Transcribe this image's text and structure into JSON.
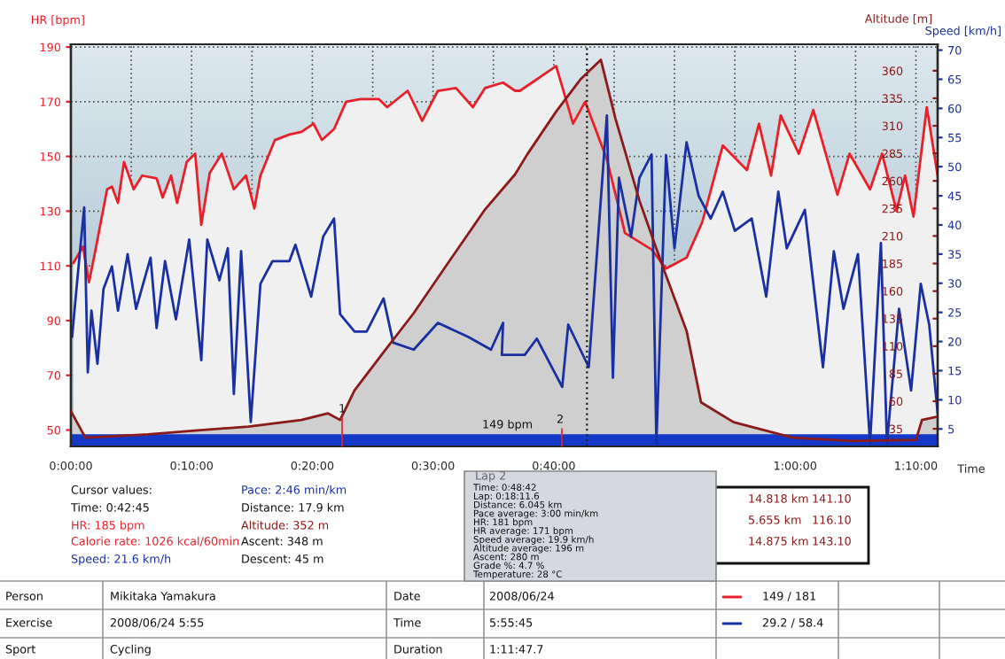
{
  "chart_data": {
    "type": "area",
    "xlabel": "Time",
    "ylabel": "HR [bpm]",
    "y2label": "Speed [km/h]",
    "y3label": "Altitude [m]",
    "xlim": [
      0,
      71.8
    ],
    "xticks": [
      {
        "value": 0,
        "label": "0:00:00"
      },
      {
        "value": 5,
        "label": null
      },
      {
        "value": 10,
        "label": "0:10:00"
      },
      {
        "value": 15,
        "label": null
      },
      {
        "value": 20,
        "label": "0:20:00"
      },
      {
        "value": 25,
        "label": null
      },
      {
        "value": 30,
        "label": "0:30:00"
      },
      {
        "value": 35,
        "label": null
      },
      {
        "value": 40,
        "label": "0:40:00"
      },
      {
        "value": 45,
        "label": null
      },
      {
        "value": 50,
        "label": null
      },
      {
        "value": 55,
        "label": null
      },
      {
        "value": 60,
        "label": "1:00:00"
      },
      {
        "value": 65,
        "label": null
      },
      {
        "value": 70,
        "label": "1:10:00"
      }
    ],
    "ylim": [
      44,
      191
    ],
    "yticks": [
      50,
      70,
      90,
      110,
      130,
      150,
      170,
      190
    ],
    "y2lim": [
      2,
      71
    ],
    "y2ticks": [
      5,
      10,
      15,
      20,
      25,
      30,
      35,
      40,
      45,
      50,
      55,
      60,
      65,
      70
    ],
    "y3lim": [
      19,
      384
    ],
    "y3ticks": [
      35,
      60,
      85,
      110,
      135,
      160,
      185,
      210,
      235,
      260,
      285,
      310,
      335,
      360
    ],
    "grid": true,
    "series": [
      {
        "color": "#e8202a",
        "x": [
          0.2,
          1.0,
          1.5,
          2.0,
          3.0,
          3.4,
          3.9,
          4.4,
          5.2,
          5.9,
          7.1,
          7.6,
          8.3,
          8.8,
          9.6,
          10.3,
          10.8,
          11.5,
          12.5,
          13.5,
          14.5,
          15.2,
          15.7,
          16.9,
          18.1,
          19.1,
          20.1,
          20.8,
          21.8,
          22.8,
          24.0,
          25.5,
          26.2,
          27.9,
          29.1,
          30.4,
          31.9,
          33.3,
          34.3,
          35.8,
          36.8,
          37.2,
          40.2,
          41.6,
          42.6,
          44.4,
          45.9,
          48.1,
          49.3,
          51.0,
          52.3,
          54.0,
          56.0,
          57.0,
          58.0,
          58.8,
          60.3,
          61.5,
          63.5,
          64.5,
          66.2,
          67.2,
          68.4,
          69.1,
          69.8,
          70.9,
          71.8
        ],
        "values": [
          111,
          117,
          104,
          115,
          138,
          139,
          133,
          148,
          138,
          143,
          142,
          135,
          143,
          133,
          148,
          151,
          125,
          144,
          151,
          138,
          143,
          131,
          143,
          156,
          158,
          159,
          162,
          156,
          160,
          170,
          171,
          171,
          168,
          174,
          163,
          174,
          175,
          168,
          175,
          177,
          174,
          174,
          183,
          162,
          170,
          149,
          122,
          116,
          109,
          113,
          126,
          154,
          145,
          162,
          143,
          165,
          151,
          167,
          136,
          151,
          138,
          151,
          130,
          143,
          128,
          168,
          143
        ]
      },
      {
        "type": "line",
        "axis": "y2",
        "color": "#1a2fa0",
        "x": [
          0.1,
          0.5,
          1.1,
          1.4,
          1.7,
          2.2,
          2.7,
          3.4,
          3.9,
          4.7,
          5.4,
          6.6,
          7.1,
          7.8,
          8.7,
          9.8,
          10.8,
          11.3,
          12.3,
          13.0,
          13.5,
          14.1,
          14.9,
          15.7,
          16.7,
          18.1,
          18.6,
          19.9,
          20.9,
          21.8,
          22.3,
          23.5,
          24.5,
          25.9,
          26.7,
          28.4,
          30.4,
          32.9,
          34.8,
          35.8,
          35.7,
          37.6,
          38.6,
          40.7,
          41.2,
          42.9,
          44.4,
          44.9,
          45.4,
          46.4,
          47.1,
          48.1,
          48.5,
          49.3,
          50.0,
          51.0,
          52.0,
          53.0,
          54.0,
          55.0,
          56.4,
          57.6,
          58.6,
          59.3,
          60.8,
          62.3,
          63.2,
          64.0,
          65.2,
          66.2,
          67.1,
          67.6,
          68.6,
          69.6,
          70.4,
          71.1,
          71.8
        ],
        "values": [
          20.8,
          29.9,
          43.0,
          14.7,
          25.3,
          16.2,
          29.0,
          32.9,
          25.3,
          35.0,
          25.6,
          34.4,
          22.3,
          33.8,
          23.8,
          37.5,
          16.8,
          37.5,
          30.5,
          36.0,
          11.0,
          35.5,
          6.2,
          29.9,
          33.8,
          33.8,
          36.6,
          27.7,
          38.0,
          41.1,
          24.7,
          21.7,
          21.7,
          27.4,
          19.8,
          18.6,
          23.2,
          20.8,
          18.6,
          23.2,
          17.7,
          17.7,
          20.5,
          12.2,
          22.9,
          15.6,
          58.8,
          13.8,
          48.1,
          38.0,
          48.1,
          52.1,
          2.5,
          52.0,
          36.0,
          54.2,
          45.0,
          41.1,
          45.7,
          39.0,
          41.1,
          27.7,
          45.7,
          36.0,
          42.6,
          15.6,
          35.5,
          25.6,
          35.0,
          2.5,
          36.9,
          2.5,
          25.6,
          11.6,
          29.9,
          22.9,
          7.7
        ]
      },
      {
        "type": "area",
        "axis": "y3",
        "color": "#8b1a1a",
        "x": [
          0,
          1.2,
          6.4,
          9.8,
          14.7,
          19.1,
          21.3,
          22.3,
          23.5,
          26.0,
          28.4,
          31.4,
          34.3,
          36.8,
          37.8,
          40.2,
          42.2,
          43.9,
          45.1,
          47.1,
          49.0,
          51.0,
          52.2,
          54.9,
          59.8,
          64.7,
          70.0,
          70.5,
          71.8
        ],
        "values": [
          51,
          27,
          30,
          33,
          37,
          43,
          49,
          43,
          70,
          106,
          140,
          188,
          234,
          266,
          284,
          323,
          352,
          370,
          317,
          242,
          183,
          124,
          59,
          41,
          27,
          24,
          25,
          43,
          46
        ]
      }
    ],
    "ref_lines": [
      {
        "axis": "x",
        "value": 42.75,
        "line_style": "dotted",
        "color": "#222222"
      }
    ],
    "bands": [
      {
        "axis": "y",
        "from": 44,
        "to": 48,
        "color": "#1438c8"
      }
    ],
    "annotations": [
      "Cursor values:",
      "Time: 0:42:45",
      "HR: 185 bpm",
      "Calorie rate: 1026 kcal/60min",
      "Speed: 21.6 km/h",
      "Pace: 2:46 min/km",
      "Distance: 17.9 km",
      "Altitude: 352 m",
      "Ascent: 348 m",
      "Descent: 45 m",
      "149 bpm",
      "14.818 km",
      "141.10",
      "5.655 km",
      "116.10",
      "14.875 km",
      "143.10",
      "Lap 2",
      "Time: 0:48:42",
      "Lap: 0:18:11.6",
      "Distance: 6.045 km",
      "Pace average: 3:00 min/km",
      "HR: 181 bpm",
      "HR average: 171 bpm",
      "Speed average: 19.9 km/h",
      "Altitude average: 196 m",
      "Ascent: 280 m",
      "Grade %: 4.7 %",
      "Temperature: 28 °C",
      "Person",
      "Mikitaka Yamakura",
      "Date",
      "2008/06/24",
      "149 / 181",
      "Exercise",
      "2008/06/24 5:55",
      "Time",
      "5:55:45",
      "29.2 / 58.4",
      "Sport",
      "Cycling",
      "Duration",
      "1:11:47.7",
      "1",
      "2"
    ]
  }
}
